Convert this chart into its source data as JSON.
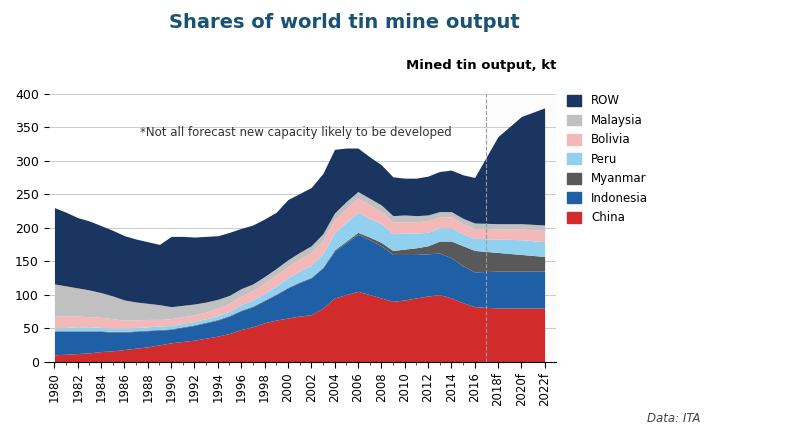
{
  "title": "Shares of world tin mine output",
  "ylabel": "Mined tin output, kt",
  "annotation": "*Not all forecast new capacity likely to be developed",
  "data_source": "Data: ITA",
  "background_color": "#ffffff",
  "years_all": [
    1980,
    1981,
    1982,
    1983,
    1984,
    1985,
    1986,
    1987,
    1988,
    1989,
    1990,
    1991,
    1992,
    1993,
    1994,
    1995,
    1996,
    1997,
    1998,
    1999,
    2000,
    2001,
    2002,
    2003,
    2004,
    2005,
    2006,
    2007,
    2008,
    2009,
    2010,
    2011,
    2012,
    2013,
    2014,
    2015,
    2016,
    "2018f",
    "2020f",
    "2022f"
  ],
  "China": [
    10,
    11,
    12,
    13,
    15,
    16,
    18,
    20,
    22,
    25,
    28,
    30,
    32,
    35,
    38,
    42,
    48,
    52,
    58,
    62,
    65,
    68,
    70,
    80,
    95,
    100,
    105,
    100,
    95,
    90,
    92,
    95,
    98,
    100,
    95,
    88,
    82,
    80,
    80,
    80
  ],
  "Indonesia": [
    35,
    34,
    33,
    32,
    30,
    28,
    26,
    25,
    24,
    22,
    20,
    21,
    22,
    23,
    24,
    26,
    28,
    30,
    33,
    38,
    45,
    50,
    55,
    60,
    70,
    78,
    85,
    82,
    78,
    70,
    68,
    65,
    63,
    62,
    60,
    55,
    52,
    55,
    55,
    55
  ],
  "Myanmar": [
    1,
    1,
    1,
    1,
    1,
    1,
    1,
    1,
    1,
    1,
    1,
    1,
    1,
    1,
    1,
    1,
    1,
    1,
    1,
    1,
    1,
    1,
    1,
    1,
    2,
    2,
    3,
    4,
    5,
    6,
    8,
    10,
    12,
    18,
    25,
    30,
    32,
    28,
    25,
    22
  ],
  "Peru": [
    4,
    5,
    6,
    6,
    5,
    5,
    5,
    5,
    5,
    5,
    5,
    5,
    5,
    5,
    6,
    6,
    8,
    9,
    10,
    12,
    14,
    16,
    18,
    20,
    25,
    28,
    30,
    28,
    28,
    25,
    24,
    22,
    20,
    20,
    20,
    18,
    18,
    20,
    22,
    22
  ],
  "Bolivia": [
    18,
    17,
    16,
    15,
    15,
    14,
    12,
    11,
    11,
    10,
    10,
    10,
    10,
    10,
    11,
    12,
    13,
    14,
    15,
    16,
    17,
    18,
    19,
    20,
    20,
    21,
    21,
    20,
    18,
    17,
    17,
    17,
    17,
    16,
    16,
    15,
    15,
    15,
    16,
    17
  ],
  "Malaysia": [
    48,
    45,
    42,
    40,
    37,
    34,
    30,
    27,
    24,
    22,
    18,
    17,
    16,
    15,
    13,
    12,
    11,
    10,
    10,
    10,
    10,
    10,
    10,
    10,
    10,
    10,
    10,
    10,
    10,
    10,
    10,
    9,
    9,
    8,
    8,
    8,
    8,
    8,
    8,
    8
  ],
  "ROW": [
    114,
    110,
    105,
    103,
    100,
    98,
    96,
    94,
    92,
    90,
    105,
    103,
    100,
    98,
    95,
    94,
    90,
    88,
    86,
    84,
    90,
    88,
    87,
    90,
    95,
    80,
    65,
    62,
    60,
    58,
    55,
    56,
    58,
    60,
    62,
    65,
    68,
    130,
    160,
    175
  ],
  "colors": {
    "China": "#d12b2b",
    "Indonesia": "#1f5fa6",
    "Myanmar": "#595959",
    "Peru": "#92d0f0",
    "Bolivia": "#f4b8b8",
    "Malaysia": "#c0c0c0",
    "ROW": "#1a3560"
  },
  "tick_labels_show": [
    1980,
    1982,
    1984,
    1986,
    1988,
    1990,
    1992,
    1994,
    1996,
    1998,
    2000,
    2002,
    2004,
    2006,
    2008,
    2010,
    2012,
    2014,
    2016,
    "2018f",
    "2020f",
    "2022f"
  ],
  "ylim": [
    0,
    400
  ],
  "yticks": [
    0,
    50,
    100,
    150,
    200,
    250,
    300,
    350,
    400
  ],
  "n_historical": 37,
  "title_color": "#1a5276",
  "title_fontsize": 14,
  "ylabel_fontsize": 9.5,
  "annotation_fontsize": 8.5,
  "tick_fontsize": 8.5,
  "legend_fontsize": 8.5
}
